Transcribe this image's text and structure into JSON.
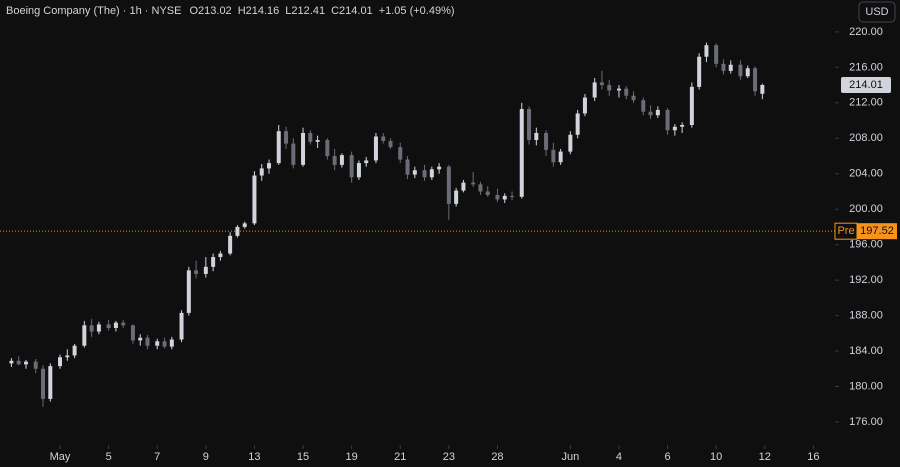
{
  "chart_data": {
    "type": "candlestick",
    "title": "Boeing Company (The) · 1h · NYSE",
    "ohlc_labels": [
      "O",
      "H",
      "L",
      "C"
    ],
    "change": "+1.05 (+0.49%)",
    "currency": "USD",
    "up_color": "#d1d4dc",
    "down_color": "#6a6d78",
    "x": [
      -2,
      -1.7,
      -1.4,
      -1,
      -0.7,
      -0.4,
      0,
      0.3,
      0.6,
      1,
      1.3,
      1.6,
      2,
      2.3,
      2.6,
      3,
      3.3,
      3.6,
      4,
      4.3,
      4.6,
      5,
      5.3,
      5.6,
      6,
      6.3,
      6.6,
      7,
      7.3,
      7.6,
      8,
      8.3,
      8.6,
      9,
      9.3,
      9.6,
      10,
      10.3,
      10.6,
      11,
      11.3,
      11.6,
      12,
      12.3,
      12.6,
      13,
      13.3,
      13.6,
      14,
      14.3,
      14.6,
      15,
      15.3,
      15.6,
      16,
      16.3,
      16.6,
      17,
      17.3,
      17.6,
      18,
      18.3,
      18.6,
      19,
      19.3,
      19.6,
      20,
      20.3,
      20.6,
      21,
      21.3,
      21.6,
      22,
      22.3,
      22.6,
      23,
      23.3,
      23.6,
      24,
      24.3,
      24.6,
      25,
      25.3,
      25.6,
      26,
      26.3,
      26.6,
      27,
      27.3,
      27.6,
      28,
      28.3,
      28.6,
      28.9
    ],
    "open": [
      182.6,
      182.9,
      182.5,
      182.8,
      182.0,
      178.6,
      182.3,
      183.3,
      183.5,
      184.6,
      186.9,
      186.2,
      187.0,
      186.6,
      187.2,
      186.9,
      185.2,
      185.5,
      184.6,
      185.1,
      184.5,
      185.3,
      188.3,
      193.1,
      192.7,
      193.5,
      194.6,
      195.0,
      197.0,
      198.0,
      198.4,
      203.8,
      204.6,
      205.2,
      208.8,
      207.4,
      205.0,
      208.6,
      207.6,
      207.8,
      206.0,
      205.0,
      206.1,
      203.6,
      205.2,
      205.5,
      208.2,
      207.7,
      207.0,
      205.6,
      203.9,
      204.4,
      203.6,
      204.5,
      204.8,
      200.6,
      202.1,
      203.0,
      202.8,
      202.0,
      201.6,
      201.1,
      201.5,
      201.4,
      211.3,
      207.8,
      208.6,
      206.7,
      205.3,
      206.5,
      208.4,
      210.8,
      212.6,
      214.3,
      214.0,
      213.4,
      213.6,
      212.8,
      212.3,
      211.0,
      210.6,
      211.2,
      208.9,
      209.3,
      209.5,
      213.8,
      217.2,
      218.5,
      216.4,
      215.6,
      216.3,
      215.0,
      215.9,
      213.02
    ],
    "high": [
      183.2,
      183.4,
      183.0,
      183.1,
      182.4,
      182.6,
      183.6,
      184.2,
      184.8,
      187.4,
      187.6,
      187.3,
      187.5,
      187.4,
      187.5,
      187.0,
      185.9,
      185.8,
      185.4,
      185.5,
      185.6,
      188.6,
      193.5,
      194.2,
      194.6,
      195.0,
      195.3,
      197.4,
      198.2,
      198.6,
      204.3,
      205.1,
      205.6,
      209.5,
      209.3,
      208.0,
      209.2,
      208.9,
      208.3,
      208.0,
      206.8,
      206.3,
      206.5,
      205.5,
      205.9,
      208.6,
      208.6,
      208.0,
      207.5,
      206.0,
      204.8,
      205.0,
      204.8,
      205.2,
      205.0,
      202.4,
      203.3,
      204.2,
      203.1,
      202.6,
      202.3,
      201.8,
      202.0,
      212.0,
      211.6,
      209.2,
      208.9,
      207.5,
      206.8,
      208.8,
      211.2,
      213.0,
      214.8,
      215.6,
      214.6,
      214.0,
      213.9,
      213.3,
      212.6,
      211.7,
      211.6,
      211.4,
      209.6,
      209.8,
      214.3,
      217.6,
      218.8,
      218.7,
      216.9,
      216.8,
      216.8,
      216.2,
      216.1,
      214.16
    ],
    "low": [
      182.2,
      182.4,
      182.0,
      181.5,
      177.7,
      178.3,
      182.0,
      182.9,
      183.2,
      184.4,
      185.6,
      185.9,
      186.3,
      186.2,
      186.6,
      184.8,
      184.6,
      184.2,
      184.2,
      184.3,
      184.2,
      185.0,
      188.0,
      192.2,
      192.3,
      193.0,
      194.2,
      194.8,
      196.8,
      197.8,
      198.2,
      203.2,
      204.0,
      205.0,
      206.8,
      204.6,
      204.8,
      207.3,
      206.9,
      205.6,
      204.4,
      204.7,
      203.0,
      203.3,
      204.8,
      205.2,
      207.4,
      206.8,
      205.2,
      203.4,
      203.5,
      203.2,
      203.3,
      204.0,
      198.8,
      200.3,
      201.9,
      202.5,
      201.6,
      201.4,
      200.8,
      200.7,
      201.0,
      201.2,
      207.3,
      207.2,
      206.0,
      204.8,
      205.0,
      206.2,
      208.0,
      210.5,
      212.2,
      213.5,
      212.8,
      212.6,
      212.4,
      212.0,
      210.6,
      210.2,
      210.3,
      208.4,
      208.3,
      208.6,
      209.2,
      213.5,
      216.6,
      216.0,
      215.2,
      215.3,
      214.6,
      214.8,
      212.8,
      212.41
    ],
    "close": [
      182.9,
      182.5,
      182.8,
      182.0,
      178.6,
      182.3,
      183.3,
      183.5,
      184.6,
      186.9,
      186.2,
      187.0,
      186.6,
      187.2,
      186.9,
      185.2,
      185.5,
      184.6,
      185.1,
      184.5,
      185.3,
      188.3,
      193.1,
      192.7,
      193.5,
      194.6,
      195.0,
      197.0,
      198.0,
      198.4,
      203.8,
      204.6,
      205.2,
      208.8,
      207.4,
      205.0,
      208.6,
      207.6,
      207.8,
      206.0,
      205.0,
      206.1,
      203.6,
      205.2,
      205.5,
      208.2,
      207.7,
      207.0,
      205.6,
      203.9,
      204.4,
      203.6,
      204.5,
      204.8,
      200.6,
      202.1,
      203.0,
      202.8,
      202.0,
      201.6,
      201.1,
      201.5,
      201.4,
      211.3,
      207.8,
      208.6,
      206.7,
      205.3,
      206.5,
      208.4,
      210.8,
      212.6,
      214.3,
      214.0,
      213.4,
      213.6,
      212.8,
      212.3,
      211.0,
      210.6,
      211.2,
      208.9,
      209.3,
      209.5,
      213.8,
      217.2,
      218.5,
      216.4,
      215.6,
      216.3,
      215.0,
      215.9,
      213.3,
      214.01
    ],
    "xlim": [
      -2.47,
      31.89
    ],
    "xticks": [
      {
        "value": 0,
        "label": "May"
      },
      {
        "value": 2,
        "label": "5"
      },
      {
        "value": 4,
        "label": "7"
      },
      {
        "value": 6,
        "label": "9"
      },
      {
        "value": 8,
        "label": "13"
      },
      {
        "value": 10,
        "label": "15"
      },
      {
        "value": 12,
        "label": "19"
      },
      {
        "value": 14,
        "label": "21"
      },
      {
        "value": 16,
        "label": "23"
      },
      {
        "value": 18,
        "label": "28"
      },
      {
        "value": 21,
        "label": "Jun"
      },
      {
        "value": 23,
        "label": "4"
      },
      {
        "value": 25,
        "label": "6"
      },
      {
        "value": 27,
        "label": "10"
      },
      {
        "value": 29,
        "label": "12"
      },
      {
        "value": 31,
        "label": "16"
      }
    ],
    "ylim": [
      173.4,
      223.6
    ],
    "yticks": [
      {
        "value": 176,
        "label": "176.00"
      },
      {
        "value": 180,
        "label": "180.00"
      },
      {
        "value": 184,
        "label": "184.00"
      },
      {
        "value": 188,
        "label": "188.00"
      },
      {
        "value": 192,
        "label": "192.00"
      },
      {
        "value": 196,
        "label": "196.00"
      },
      {
        "value": 200,
        "label": "200.00"
      },
      {
        "value": 204,
        "label": "204.00"
      },
      {
        "value": 208,
        "label": "208.00"
      },
      {
        "value": 212,
        "label": "212.00"
      },
      {
        "value": 216,
        "label": "216.00"
      },
      {
        "value": 220,
        "label": "220.00"
      }
    ],
    "pre_market": {
      "label": "Pre",
      "value": 197.52,
      "color": "#f7931a"
    }
  }
}
